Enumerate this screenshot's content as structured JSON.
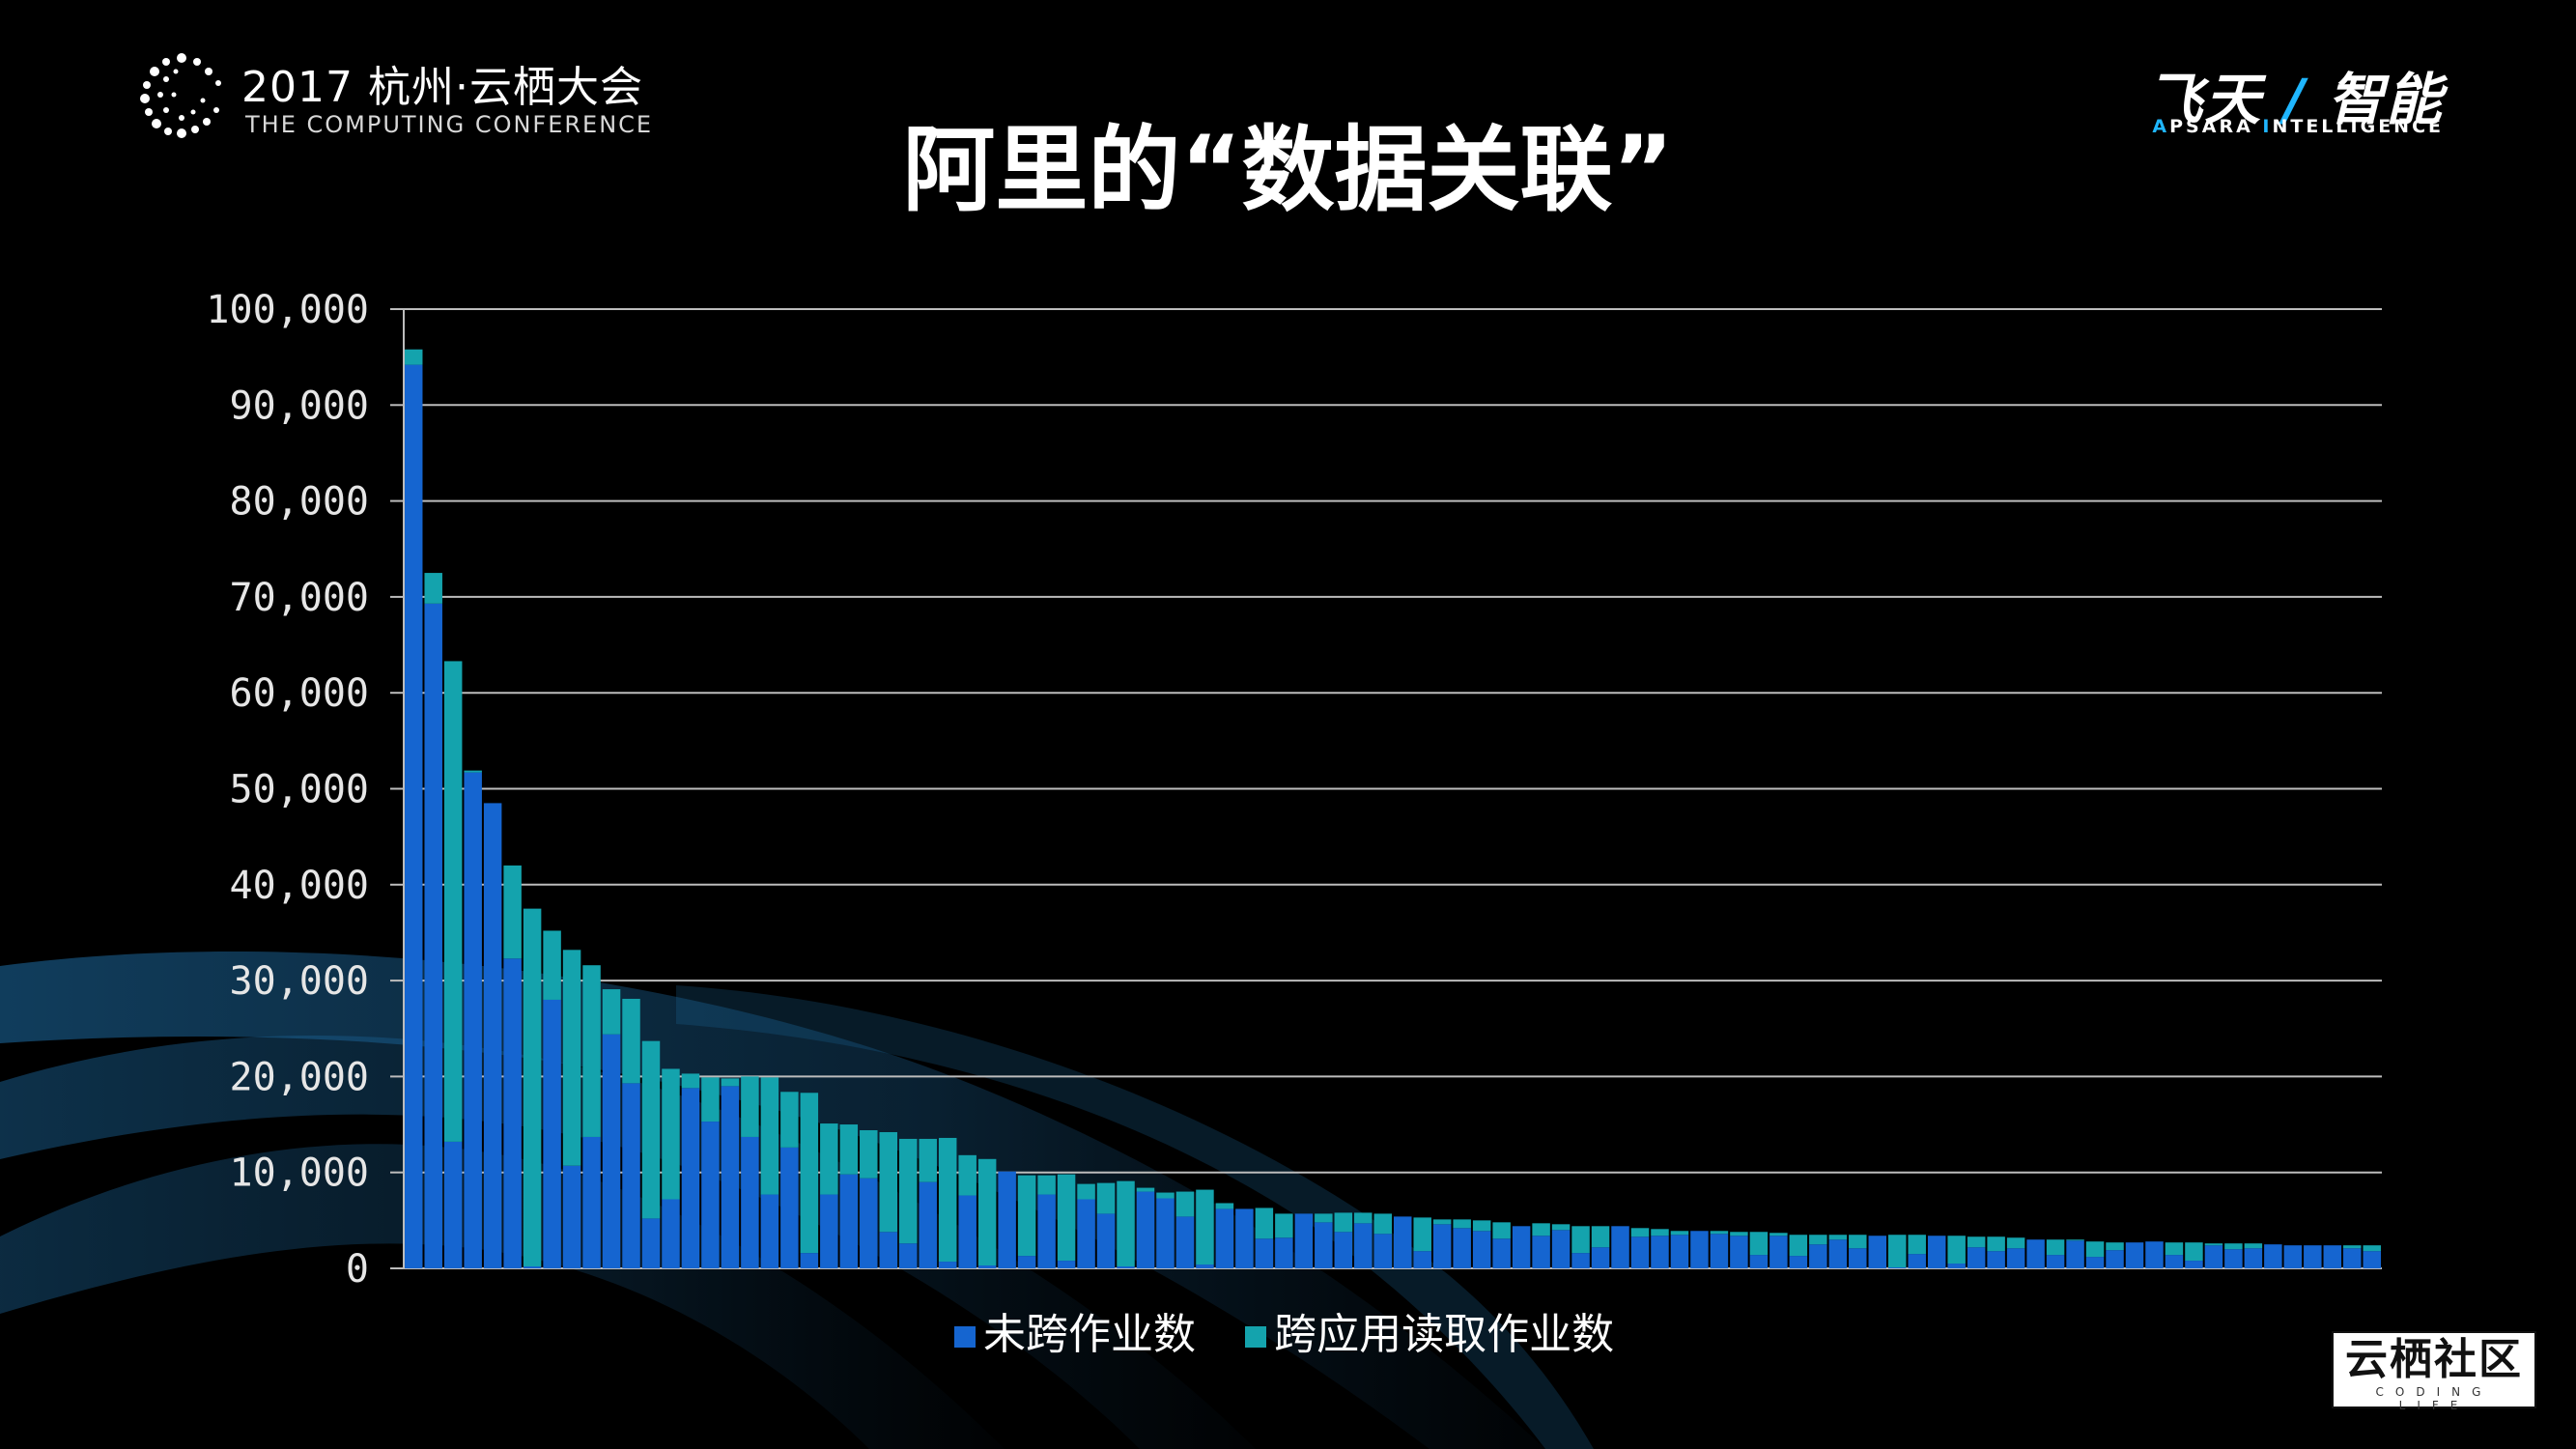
{
  "header": {
    "conference_title": "2017 杭州·云栖大会",
    "conference_subtitle": "THE COMPUTING CONFERENCE",
    "slide_title": "阿里的“数据关联”",
    "brand_cn_left": "飞天",
    "brand_slash": "/",
    "brand_cn_right": "智能",
    "brand_en_a_cap": "A",
    "brand_en_a_rest": "PSARA ",
    "brand_en_i_cap": "I",
    "brand_en_i_rest": "NTELLIGENCE"
  },
  "badge": {
    "name": "云栖社区",
    "sub": "CODING LIFE"
  },
  "colors": {
    "series_dark": "#1565d0",
    "series_teal": "#14a3ad",
    "accent": "#1fb6ff",
    "gridline": "#bcbcbc"
  },
  "chart_data": {
    "type": "bar",
    "stacked": true,
    "ylim": [
      0,
      100000
    ],
    "yticks": [
      "0",
      "10,000",
      "20,000",
      "30,000",
      "40,000",
      "50,000",
      "60,000",
      "70,000",
      "80,000",
      "90,000",
      "100,000"
    ],
    "ytick_values": [
      0,
      10000,
      20000,
      30000,
      40000,
      50000,
      60000,
      70000,
      80000,
      90000,
      100000
    ],
    "grid": true,
    "legend_position": "bottom",
    "series": [
      {
        "name": "未跨作业数",
        "color": "#1565d0",
        "values": [
          94200,
          69300,
          13200,
          51700,
          48500,
          32300,
          200,
          28000,
          10700,
          13700,
          24400,
          19300,
          5200,
          7200,
          18800,
          15300,
          19000,
          13700,
          7700,
          12600,
          1600,
          7700,
          9800,
          9400,
          3800,
          2600,
          9000,
          700,
          7600,
          300,
          10100,
          1300,
          7700,
          800,
          7200,
          5700,
          200,
          8000,
          7300,
          5400,
          400,
          6200,
          6200,
          3100,
          3200,
          5700,
          4800,
          3800,
          4700,
          3600,
          5400,
          1800,
          4600,
          4200,
          3900,
          3100,
          4400,
          3400,
          4000,
          1600,
          2200,
          4400,
          3300,
          3400,
          3500,
          3900,
          3600,
          3400,
          1400,
          3400,
          1300,
          2500,
          3000,
          2100,
          3400,
          100,
          1500,
          3400,
          500,
          2200,
          1800,
          2100,
          3000,
          1400,
          2900,
          1200,
          1900,
          2700,
          2800,
          1400,
          800,
          2400,
          2000,
          2100,
          2500,
          2400,
          2400,
          2400,
          2100,
          1800
        ]
      },
      {
        "name": "跨应用读取作业数",
        "color": "#14a3ad",
        "values": [
          1600,
          3200,
          50100,
          200,
          0,
          9700,
          37300,
          7200,
          22500,
          17900,
          4700,
          8800,
          18500,
          13600,
          1500,
          4600,
          800,
          6300,
          12200,
          5800,
          16700,
          7400,
          5200,
          5000,
          10400,
          10900,
          4500,
          12900,
          4200,
          11100,
          0,
          8400,
          2000,
          9000,
          1600,
          3200,
          8900,
          400,
          600,
          2600,
          7800,
          600,
          0,
          3200,
          2500,
          0,
          900,
          2000,
          1100,
          2100,
          0,
          3500,
          500,
          900,
          1100,
          1700,
          0,
          1300,
          600,
          2800,
          2200,
          0,
          900,
          700,
          400,
          0,
          300,
          400,
          2400,
          300,
          2200,
          1000,
          500,
          1400,
          0,
          3400,
          2000,
          0,
          2900,
          1100,
          1500,
          1100,
          0,
          1600,
          100,
          1600,
          800,
          0,
          0,
          1300,
          1900,
          200,
          600,
          500,
          0,
          0,
          0,
          0,
          300,
          600
        ]
      }
    ]
  }
}
